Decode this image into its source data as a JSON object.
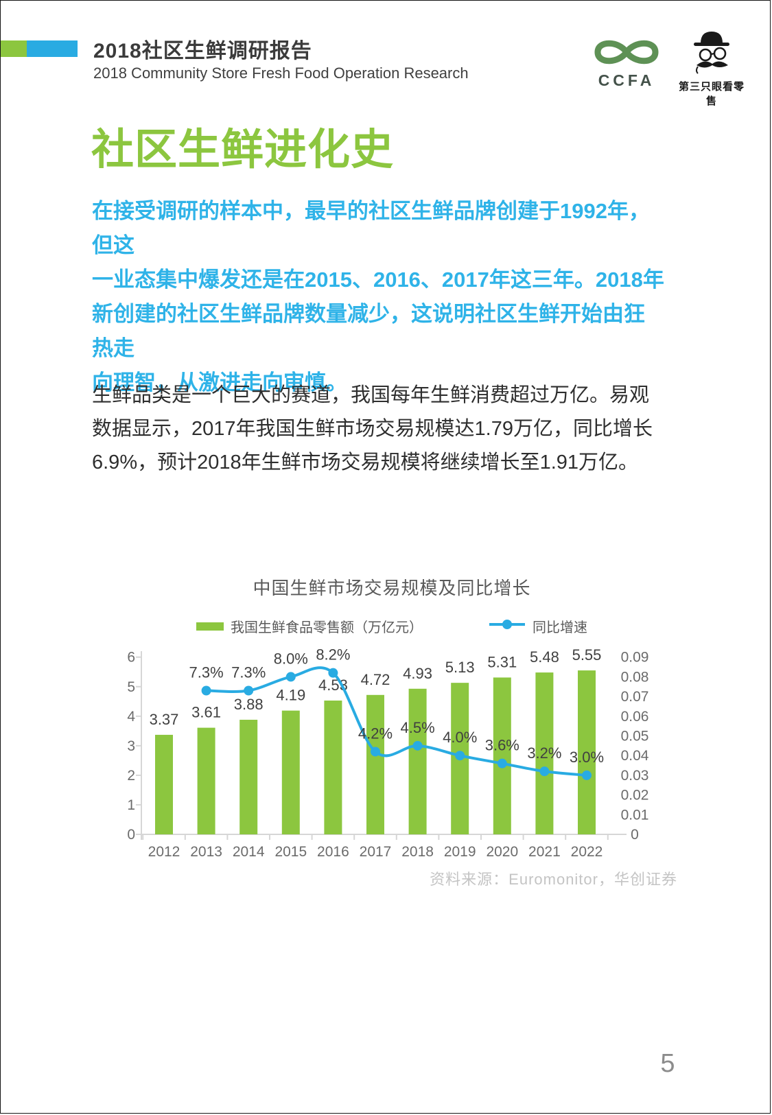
{
  "header": {
    "title": "2018社区生鲜调研报告",
    "subtitle": "2018 Community Store Fresh Food Operation Research",
    "logo_ccfa_text": "CCFA",
    "logo_third_eye_text": "第三只眼看零售"
  },
  "content": {
    "heading": "社区生鲜进化史",
    "intro_highlight": "在接受调研的样本中，最早的社区生鲜品牌创建于1992年，但这\n一业态集中爆发还是在2015、2016、2017年这三年。2018年\n新创建的社区生鲜品牌数量减少，这说明社区生鲜开始由狂热走\n向理智，从激进走向审慎。",
    "body_text": "生鲜品类是一个巨大的赛道，我国每年生鲜消费超过万亿。易观\n数据显示，2017年我国生鲜市场交易规模达1.79万亿，同比增长\n6.9%，预计2018年生鲜市场交易规模将继续增长至1.91万亿。",
    "source_note": "资料来源：Euromonitor，华创证券",
    "page_number": "5"
  },
  "colors": {
    "green": "#8CC63F",
    "blue": "#29ABE2",
    "blue_text": "#2FB3E8",
    "axis_line": "#D6D6D6"
  },
  "chart_data": {
    "type": "bar+line",
    "title": "中国生鲜市场交易规模及同比增长",
    "categories": [
      "2012",
      "2013",
      "2014",
      "2015",
      "2016",
      "2017",
      "2018",
      "2019",
      "2020",
      "2021",
      "2022"
    ],
    "series": [
      {
        "name": "我国生鲜食品零售额（万亿元）",
        "type": "bar",
        "axis": "left",
        "color": "#8CC63F",
        "values": [
          3.37,
          3.61,
          3.88,
          4.19,
          4.53,
          4.72,
          4.93,
          5.13,
          5.31,
          5.48,
          5.55
        ],
        "labels": [
          "3.37",
          "3.61",
          "3.88",
          "4.19",
          "4.53",
          "4.72",
          "4.93",
          "5.13",
          "5.31",
          "5.48",
          "5.55"
        ]
      },
      {
        "name": "同比增速",
        "type": "line",
        "axis": "right",
        "color": "#29ABE2",
        "values": [
          null,
          0.073,
          0.073,
          0.08,
          0.082,
          0.042,
          0.045,
          0.04,
          0.036,
          0.032,
          0.03
        ],
        "labels": [
          "",
          "7.3%",
          "7.3%",
          "8.0%",
          "8.2%",
          "4.2%",
          "4.5%",
          "4.0%",
          "3.6%",
          "3.2%",
          "3.0%"
        ]
      }
    ],
    "left_axis": {
      "min": 0,
      "max": 6,
      "ticks": [
        0,
        1,
        2,
        3,
        4,
        5,
        6
      ],
      "labels": [
        "0",
        "1",
        "2",
        "3",
        "4",
        "5",
        "6"
      ]
    },
    "right_axis": {
      "min": 0,
      "max": 0.09,
      "ticks": [
        0,
        0.01,
        0.02,
        0.03,
        0.04,
        0.05,
        0.06,
        0.07,
        0.08,
        0.09
      ],
      "labels": [
        "0",
        "0.01",
        "0.02",
        "0.03",
        "0.04",
        "0.05",
        "0.06",
        "0.07",
        "0.08",
        "0.09"
      ]
    },
    "legend_position": "top",
    "grid": false
  }
}
